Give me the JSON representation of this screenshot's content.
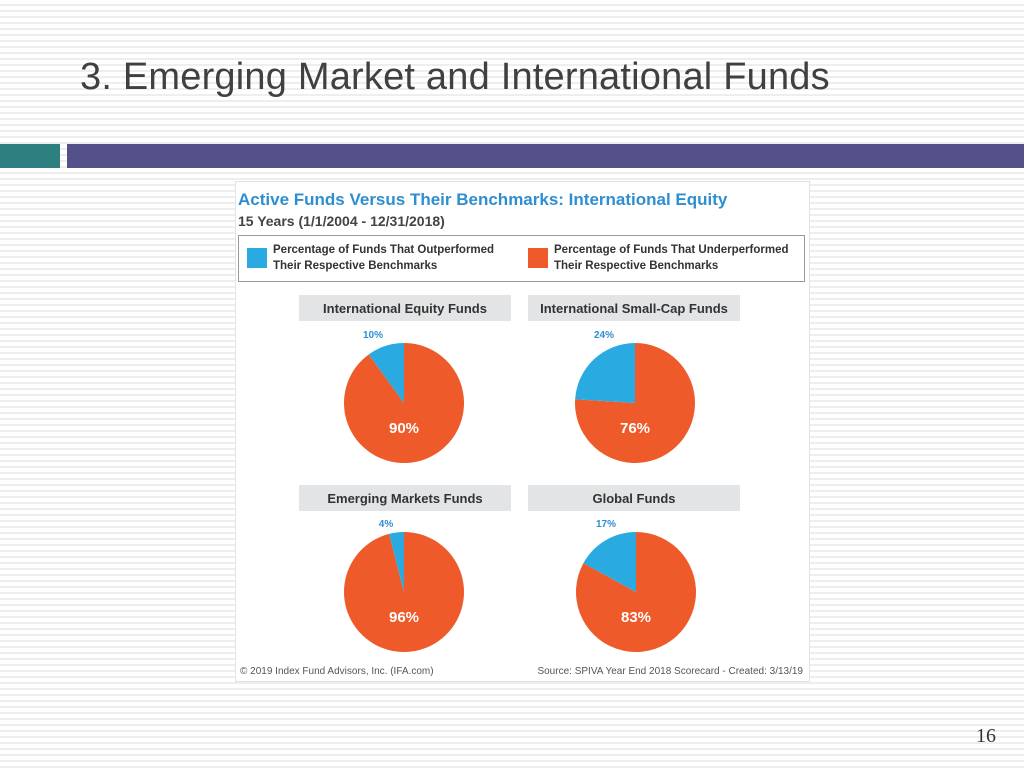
{
  "slide": {
    "title": "3. Emerging Market and International Funds",
    "page_number": "16"
  },
  "colors": {
    "outperformed": "#29abe2",
    "underperformed": "#ee5a29",
    "header_teal": "#2e7f7f",
    "header_bar": "#53508a",
    "chart_title": "#2d8fd1"
  },
  "chart_data": {
    "type": "pie",
    "title": "Active Funds Versus Their Benchmarks: International Equity",
    "subtitle": "15 Years (1/1/2004 - 12/31/2018)",
    "legend": [
      {
        "line1": "Percentage of Funds That Outperformed",
        "line2": "Their Respective Benchmarks"
      },
      {
        "line1": "Percentage of Funds That Underperformed",
        "line2": "Their Respective Benchmarks"
      }
    ],
    "charts": [
      {
        "name": "International Equity Funds",
        "outperformed": 10,
        "underperformed": 90,
        "outperformed_label": "10%",
        "underperformed_label": "90%"
      },
      {
        "name": "International Small-Cap Funds",
        "outperformed": 24,
        "underperformed": 76,
        "outperformed_label": "24%",
        "underperformed_label": "76%"
      },
      {
        "name": "Emerging Markets Funds",
        "outperformed": 4,
        "underperformed": 96,
        "outperformed_label": "4%",
        "underperformed_label": "96%"
      },
      {
        "name": "Global Funds",
        "outperformed": 17,
        "underperformed": 83,
        "outperformed_label": "17%",
        "underperformed_label": "83%"
      }
    ],
    "footer_left": "© 2019 Index Fund Advisors, Inc. (IFA.com)",
    "footer_right": "Source: SPIVA Year End 2018 Scorecard - Created: 3/13/19"
  }
}
